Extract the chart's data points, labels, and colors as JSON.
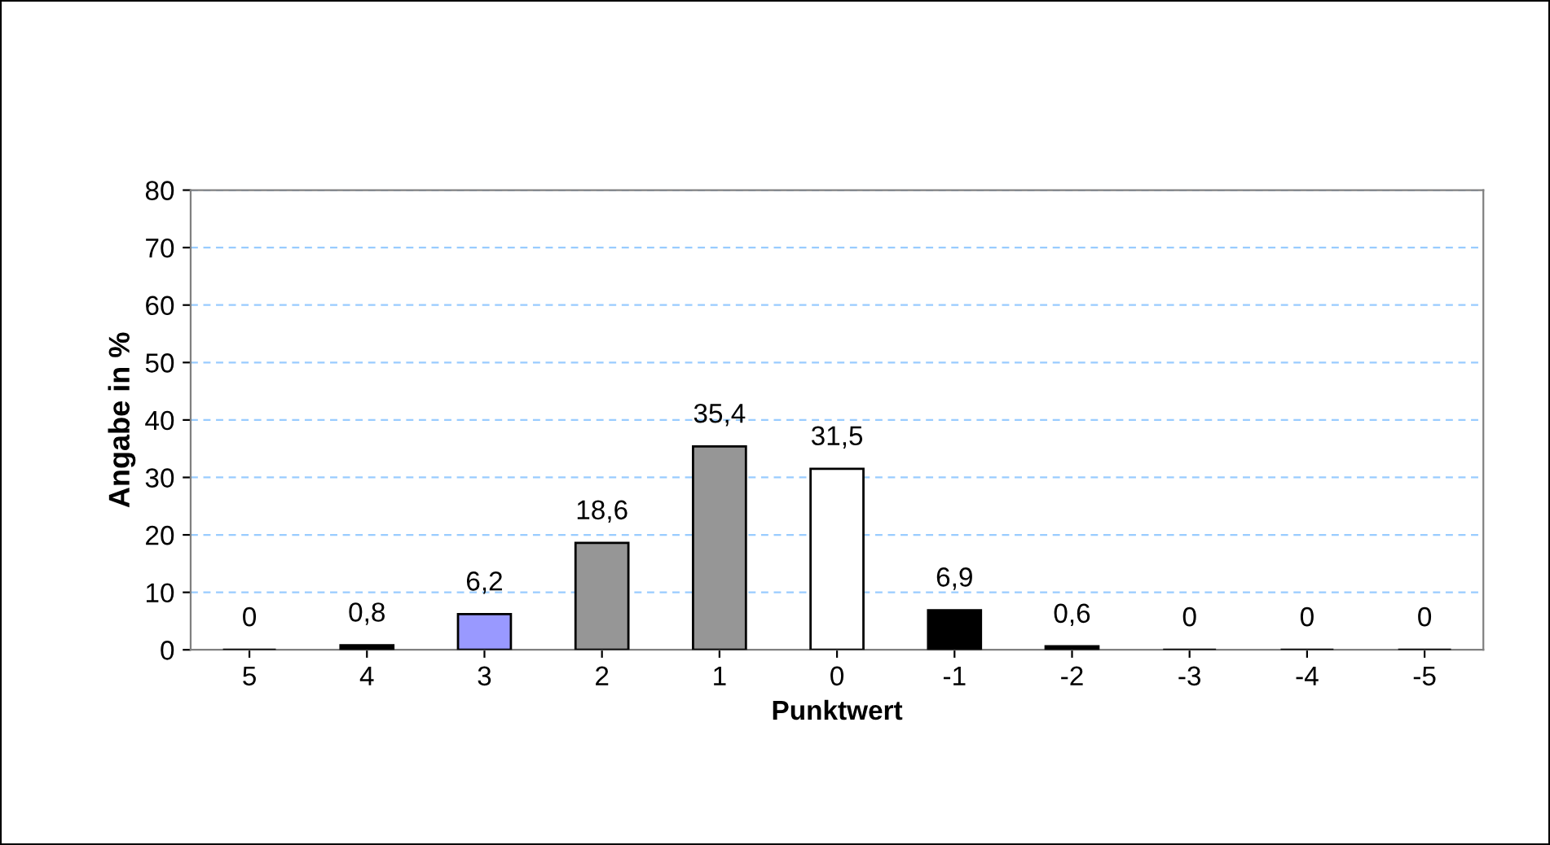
{
  "chart_data": {
    "type": "bar",
    "xlabel": "Punktwert",
    "ylabel": "Angabe in %",
    "categories": [
      "5",
      "4",
      "3",
      "2",
      "1",
      "0",
      "-1",
      "-2",
      "-3",
      "-4",
      "-5"
    ],
    "values": [
      0,
      0.8,
      6.2,
      18.6,
      35.4,
      31.5,
      6.9,
      0.6,
      0,
      0,
      0
    ],
    "colors": [
      "#000000",
      "#000000",
      "#9999ff",
      "#969696",
      "#969696",
      "#ffffff",
      "#000000",
      "#000000",
      "#000000",
      "#000000",
      "#000000"
    ],
    "value_labels": [
      "0",
      "0,8",
      "6,2",
      "18,6",
      "35,4",
      "31,5",
      "6,9",
      "0,6",
      "0",
      "0",
      "0"
    ],
    "ylim": [
      0,
      80
    ],
    "yticks": [
      0,
      10,
      20,
      30,
      40,
      50,
      60,
      70,
      80
    ],
    "grid": "y",
    "legend": false
  }
}
